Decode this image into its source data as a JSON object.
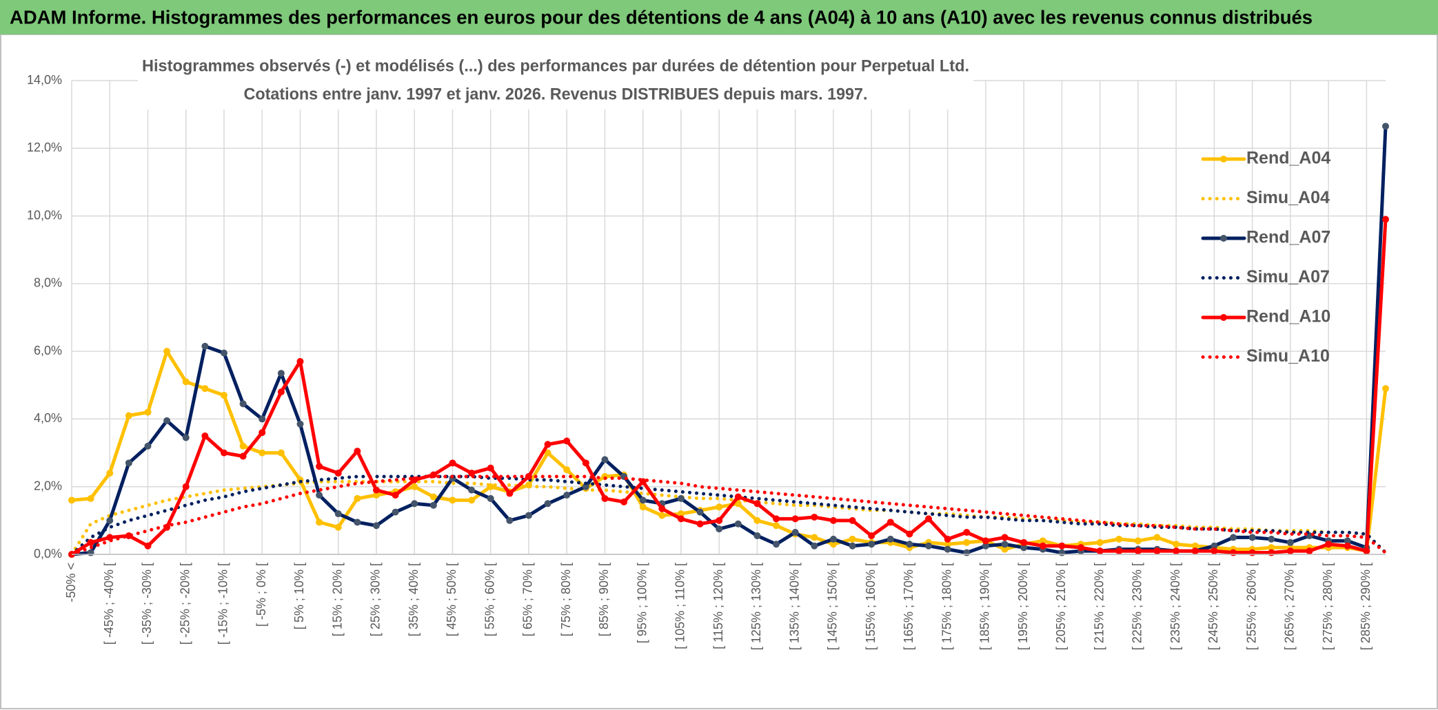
{
  "chart_data": {
    "type": "line",
    "title": "ADAM Informe. Histogrammes des performances en euros pour des détentions de 4 ans (A04) à 10 ans (A10) avec les revenus connus distribués",
    "subtitle": [
      "Histogrammes observés (-) et modélisés (...) des performances par durées de détention pour Perpetual Ltd.",
      "Cotations entre janv. 1997 et janv. 2026. Revenus DISTRIBUES depuis mars. 1997."
    ],
    "categories": [
      "-50% <",
      null,
      "[ -45% ; -40% [",
      null,
      "[ -35% ; -30% [",
      null,
      "[ -25% ; -20% [",
      null,
      "[ -15% ; -10% [",
      null,
      "[ -5% ; 0% [",
      null,
      "[ 5% ; 10% [",
      null,
      "[ 15% ; 20% [",
      null,
      "[ 25% ; 30% [",
      null,
      "[ 35% ; 40% [",
      null,
      "[ 45% ; 50% [",
      null,
      "[ 55% ; 60% [",
      null,
      "[ 65% ; 70% [",
      null,
      "[ 75% ; 80% [",
      null,
      "[ 85% ; 90% [",
      null,
      "[ 95% ; 100% [",
      null,
      "[ 105% ; 110% [",
      null,
      "[ 115% ; 120% [",
      null,
      "[ 125% ; 130% [",
      null,
      "[ 135% ; 140% [",
      null,
      "[ 145% ; 150% [",
      null,
      "[ 155% ; 160% [",
      null,
      "[ 165% ; 170% [",
      null,
      "[ 175% ; 180% [",
      null,
      "[ 185% ; 190% [",
      null,
      "[ 195% ; 200% [",
      null,
      "[ 205% ; 210% [",
      null,
      "[ 215% ; 220% [",
      null,
      "[ 225% ; 230% [",
      null,
      "[ 235% ; 240% [",
      null,
      "[ 245% ; 250% [",
      null,
      "[ 255% ; 260% [",
      null,
      "[ 265% ; 270% [",
      null,
      "[ 275% ; 280% [",
      null,
      "[ 285% ; 290% [",
      null
    ],
    "series": [
      {
        "name": "Rend_A04",
        "color": "#ffc000",
        "marker_color": "#ffc000",
        "style": "solid",
        "marker": true,
        "values": [
          1.6,
          1.65,
          2.4,
          4.1,
          4.2,
          6.0,
          5.1,
          4.9,
          4.7,
          3.2,
          3.0,
          3.0,
          2.2,
          0.95,
          0.8,
          1.65,
          1.75,
          1.85,
          2.0,
          1.7,
          1.6,
          1.6,
          2.0,
          1.85,
          2.05,
          3.0,
          2.5,
          1.95,
          2.3,
          2.35,
          1.4,
          1.15,
          1.2,
          1.3,
          1.4,
          1.5,
          1.0,
          0.85,
          0.6,
          0.5,
          0.3,
          0.45,
          0.35,
          0.35,
          0.2,
          0.35,
          0.3,
          0.35,
          0.4,
          0.15,
          0.3,
          0.4,
          0.25,
          0.3,
          0.35,
          0.45,
          0.4,
          0.5,
          0.3,
          0.25,
          0.2,
          0.15,
          0.15,
          0.2,
          0.2,
          0.2,
          0.2,
          0.2,
          0.1,
          4.9
        ]
      },
      {
        "name": "Simu_A04",
        "color": "#ffc000",
        "style": "dotted",
        "marker": false,
        "values": [
          0,
          0.9,
          1.15,
          1.3,
          1.45,
          1.6,
          1.7,
          1.8,
          1.9,
          1.95,
          2.0,
          2.05,
          2.1,
          2.15,
          2.15,
          2.15,
          2.15,
          2.15,
          2.15,
          2.15,
          2.1,
          2.1,
          2.05,
          2.05,
          2.0,
          2.0,
          1.95,
          1.9,
          1.9,
          1.85,
          1.8,
          1.75,
          1.7,
          1.65,
          1.65,
          1.6,
          1.55,
          1.5,
          1.45,
          1.45,
          1.4,
          1.35,
          1.3,
          1.3,
          1.25,
          1.2,
          1.2,
          1.15,
          1.1,
          1.1,
          1.05,
          1.0,
          1.0,
          0.95,
          0.95,
          0.9,
          0.9,
          0.85,
          0.85,
          0.8,
          0.8,
          0.75,
          0.75,
          0.7,
          0.7,
          0.7,
          0.65,
          0.65,
          0.6,
          0.05
        ]
      },
      {
        "name": "Rend_A07",
        "color": "#002060",
        "marker_color": "#44546a",
        "style": "solid",
        "marker": true,
        "values": [
          0,
          0.05,
          1.0,
          2.7,
          3.2,
          3.95,
          3.45,
          6.15,
          5.95,
          4.45,
          4.0,
          5.35,
          3.85,
          1.75,
          1.2,
          0.95,
          0.85,
          1.25,
          1.5,
          1.45,
          2.25,
          1.9,
          1.65,
          1.0,
          1.15,
          1.5,
          1.75,
          2.0,
          2.8,
          2.3,
          1.6,
          1.5,
          1.65,
          1.25,
          0.75,
          0.9,
          0.55,
          0.3,
          0.65,
          0.25,
          0.45,
          0.25,
          0.3,
          0.45,
          0.3,
          0.25,
          0.15,
          0.05,
          0.25,
          0.3,
          0.2,
          0.15,
          0.05,
          0.1,
          0.1,
          0.15,
          0.15,
          0.15,
          0.1,
          0.1,
          0.25,
          0.5,
          0.5,
          0.45,
          0.35,
          0.55,
          0.4,
          0.4,
          0.2,
          12.65
        ]
      },
      {
        "name": "Simu_A07",
        "color": "#002060",
        "style": "dotted",
        "marker": false,
        "values": [
          0,
          0.5,
          0.8,
          1.0,
          1.15,
          1.3,
          1.45,
          1.6,
          1.7,
          1.85,
          1.95,
          2.05,
          2.15,
          2.2,
          2.25,
          2.3,
          2.3,
          2.3,
          2.3,
          2.3,
          2.3,
          2.3,
          2.25,
          2.25,
          2.2,
          2.2,
          2.15,
          2.1,
          2.05,
          2.0,
          1.95,
          1.9,
          1.85,
          1.8,
          1.75,
          1.7,
          1.65,
          1.6,
          1.55,
          1.5,
          1.45,
          1.4,
          1.35,
          1.3,
          1.25,
          1.2,
          1.15,
          1.1,
          1.1,
          1.05,
          1.0,
          1.0,
          0.95,
          0.9,
          0.9,
          0.85,
          0.85,
          0.8,
          0.8,
          0.75,
          0.75,
          0.7,
          0.7,
          0.7,
          0.65,
          0.65,
          0.65,
          0.65,
          0.6,
          0.05
        ]
      },
      {
        "name": "Rend_A10",
        "color": "#ff0000",
        "marker_color": "#ff0000",
        "style": "solid",
        "marker": true,
        "values": [
          0,
          0.35,
          0.5,
          0.55,
          0.25,
          0.8,
          2.0,
          3.5,
          3.0,
          2.9,
          3.6,
          4.8,
          5.7,
          2.6,
          2.4,
          3.05,
          1.9,
          1.75,
          2.2,
          2.35,
          2.7,
          2.4,
          2.55,
          1.8,
          2.3,
          3.25,
          3.35,
          2.7,
          1.65,
          1.55,
          2.15,
          1.35,
          1.05,
          0.9,
          1.0,
          1.7,
          1.5,
          1.05,
          1.05,
          1.1,
          1.0,
          1.0,
          0.55,
          0.95,
          0.6,
          1.05,
          0.45,
          0.65,
          0.4,
          0.5,
          0.35,
          0.25,
          0.25,
          0.2,
          0.1,
          0.1,
          0.1,
          0.1,
          0.1,
          0.1,
          0.1,
          0.05,
          0.05,
          0.05,
          0.1,
          0.1,
          0.3,
          0.25,
          0.1,
          9.9
        ]
      },
      {
        "name": "Simu_A10",
        "color": "#ff0000",
        "style": "dotted",
        "marker": false,
        "values": [
          0,
          0.2,
          0.4,
          0.55,
          0.7,
          0.85,
          0.95,
          1.1,
          1.25,
          1.4,
          1.5,
          1.65,
          1.8,
          1.9,
          2.0,
          2.1,
          2.15,
          2.2,
          2.25,
          2.3,
          2.3,
          2.3,
          2.3,
          2.3,
          2.3,
          2.3,
          2.3,
          2.3,
          2.25,
          2.25,
          2.2,
          2.15,
          2.1,
          2.0,
          1.95,
          1.9,
          1.85,
          1.8,
          1.75,
          1.7,
          1.65,
          1.6,
          1.55,
          1.5,
          1.45,
          1.4,
          1.35,
          1.3,
          1.25,
          1.2,
          1.15,
          1.1,
          1.05,
          1.0,
          0.95,
          0.9,
          0.85,
          0.85,
          0.8,
          0.75,
          0.75,
          0.7,
          0.65,
          0.65,
          0.6,
          0.6,
          0.55,
          0.55,
          0.5,
          0.05
        ]
      }
    ],
    "ylim": [
      0,
      14
    ],
    "yticks": [
      {
        "value": 0,
        "label": "0,0%"
      },
      {
        "value": 2,
        "label": "2,0%"
      },
      {
        "value": 4,
        "label": "4,0%"
      },
      {
        "value": 6,
        "label": "6,0%"
      },
      {
        "value": 8,
        "label": "8,0%"
      },
      {
        "value": 10,
        "label": "10,0%"
      },
      {
        "value": 12,
        "label": "12,0%"
      },
      {
        "value": 14,
        "label": "14,0%"
      }
    ],
    "grid": true,
    "legend": "right"
  }
}
